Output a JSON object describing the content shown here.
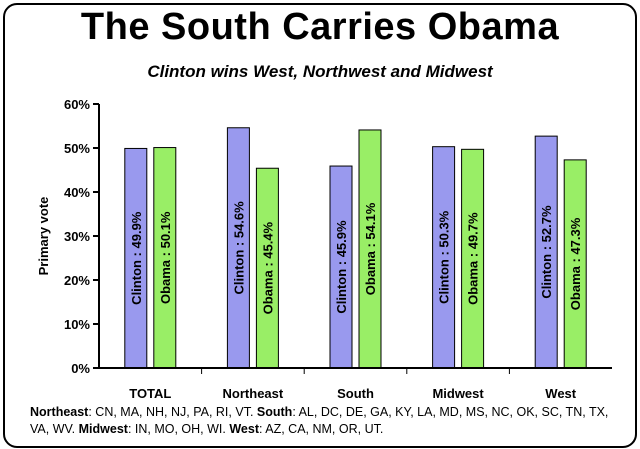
{
  "title": "The South Carries Obama",
  "subtitle": "Clinton wins West, Northwest and Midwest",
  "colors": {
    "clinton": "#9999ee",
    "obama": "#99ee66"
  },
  "notes": [
    {
      "region": "Northeast",
      "states": "CN, MA, NH, NJ, PA, RI, VT."
    },
    {
      "region": "South",
      "states": "AL, DC, DE, GA, KY, LA, MD, MS, NC, OK, SC, TN, TX, VA, WV."
    },
    {
      "region": "Midwest",
      "states": "IN, MO, OH, WI."
    },
    {
      "region": "West",
      "states": "AZ, CA, NM, OR, UT."
    }
  ],
  "chart_data": {
    "type": "bar",
    "ylabel": "Primary vote",
    "ylim": [
      0,
      60
    ],
    "yticks": [
      "0%",
      "10%",
      "20%",
      "30%",
      "40%",
      "50%",
      "60%"
    ],
    "grid": false,
    "categories": [
      "TOTAL",
      "Northeast",
      "South",
      "Midwest",
      "West"
    ],
    "series": [
      {
        "name": "Clinton",
        "values": [
          49.9,
          54.6,
          45.9,
          50.3,
          52.7
        ],
        "labels": [
          "Clinton : 49.9%",
          "Clinton : 54.6%",
          "Clinton : 45.9%",
          "Clinton : 50.3%",
          "Clinton : 52.7%"
        ]
      },
      {
        "name": "Obama",
        "values": [
          50.1,
          45.4,
          54.1,
          49.7,
          47.3
        ],
        "labels": [
          "Obama : 50.1%",
          "Obama : 45.4%",
          "Obama : 54.1%",
          "Obama : 49.7%",
          "Obama : 47.3%"
        ]
      }
    ]
  }
}
